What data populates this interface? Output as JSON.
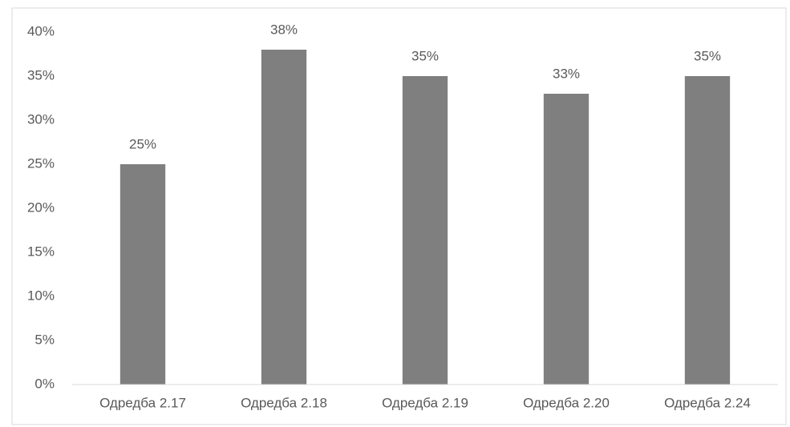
{
  "chart_data": {
    "type": "bar",
    "categories": [
      "Одредба 2.17",
      "Одредба 2.18",
      "Одредба 2.19",
      "Одредба 2.20",
      "Одредба 2.24"
    ],
    "values": [
      25,
      38,
      35,
      33,
      35
    ],
    "value_labels": [
      "25%",
      "38%",
      "35%",
      "33%",
      "35%"
    ],
    "color": "#7f7f7f",
    "ylim": [
      0,
      40
    ],
    "yticks": [
      {
        "value": 0,
        "label": "0%"
      },
      {
        "value": 5,
        "label": "5%"
      },
      {
        "value": 10,
        "label": "10%"
      },
      {
        "value": 15,
        "label": "15%"
      },
      {
        "value": 20,
        "label": "20%"
      },
      {
        "value": 25,
        "label": "25%"
      },
      {
        "value": 30,
        "label": "30%"
      },
      {
        "value": 35,
        "label": "35%"
      },
      {
        "value": 40,
        "label": "40%"
      }
    ],
    "grid": false
  }
}
